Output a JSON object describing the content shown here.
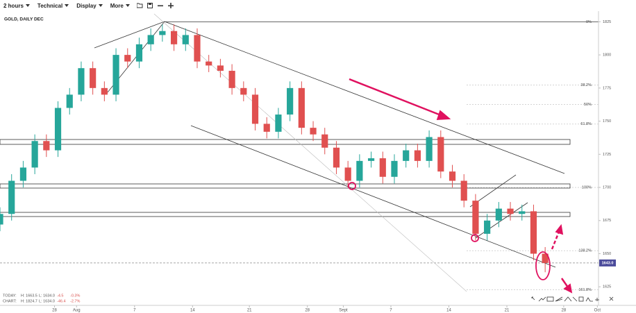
{
  "toolbar": {
    "interval": "2 hours",
    "technical": "Technical",
    "display": "Display",
    "more": "More"
  },
  "stats": {
    "today": {
      "label": "TODAY:",
      "high": "H: 1663.5",
      "low": "L: 1634.0",
      "change": "-4.5",
      "percent": "-0.3%"
    },
    "chart": {
      "label": "CHART:",
      "high": "H: 1824.7",
      "low": "L: 1634.0",
      "change": "-46.4",
      "percent": "-2.7%"
    }
  },
  "chart_data": {
    "type": "candlestick",
    "title": "GOLD, DAILY DEC",
    "x": [
      0,
      1,
      2,
      3,
      4,
      5,
      6,
      7,
      8,
      9,
      10,
      11,
      12,
      13,
      14,
      15,
      16,
      17,
      18,
      19,
      20,
      21,
      22,
      23,
      24,
      25,
      26,
      27,
      28,
      29,
      30,
      31,
      32,
      33,
      34,
      35,
      36,
      37,
      38,
      39,
      40,
      41,
      42,
      43,
      44,
      45,
      46,
      47
    ],
    "open": [
      1672,
      1680,
      1705,
      1715,
      1735,
      1728,
      1760,
      1770,
      1790,
      1775,
      1770,
      1800,
      1795,
      1808,
      1815,
      1818,
      1808,
      1815,
      1795,
      1792,
      1788,
      1775,
      1770,
      1748,
      1742,
      1755,
      1775,
      1745,
      1740,
      1730,
      1715,
      1705,
      1720,
      1722,
      1708,
      1720,
      1728,
      1720,
      1738,
      1712,
      1705,
      1690,
      1665,
      1675,
      1684,
      1680,
      1682,
      1650
    ],
    "high": [
      1685,
      1710,
      1720,
      1740,
      1740,
      1765,
      1775,
      1795,
      1795,
      1780,
      1805,
      1805,
      1813,
      1820,
      1823,
      1823,
      1820,
      1820,
      1800,
      1797,
      1793,
      1780,
      1775,
      1753,
      1760,
      1780,
      1780,
      1750,
      1745,
      1735,
      1720,
      1725,
      1727,
      1727,
      1725,
      1733,
      1733,
      1743,
      1743,
      1717,
      1710,
      1695,
      1680,
      1689,
      1689,
      1687,
      1687,
      1655
    ],
    "low": [
      1667,
      1675,
      1700,
      1710,
      1723,
      1723,
      1755,
      1765,
      1770,
      1765,
      1765,
      1790,
      1790,
      1803,
      1810,
      1803,
      1803,
      1790,
      1787,
      1783,
      1770,
      1765,
      1743,
      1737,
      1737,
      1750,
      1740,
      1735,
      1725,
      1710,
      1700,
      1700,
      1715,
      1703,
      1703,
      1715,
      1715,
      1715,
      1707,
      1700,
      1685,
      1660,
      1660,
      1670,
      1675,
      1675,
      1645,
      1636
    ],
    "close": [
      1680,
      1705,
      1715,
      1735,
      1728,
      1760,
      1770,
      1790,
      1775,
      1770,
      1800,
      1795,
      1808,
      1815,
      1818,
      1808,
      1815,
      1795,
      1792,
      1788,
      1775,
      1770,
      1748,
      1742,
      1755,
      1775,
      1745,
      1740,
      1730,
      1715,
      1705,
      1720,
      1722,
      1708,
      1720,
      1728,
      1720,
      1738,
      1712,
      1705,
      1690,
      1665,
      1675,
      1684,
      1680,
      1682,
      1650,
      1643
    ],
    "up_color": "#26a69a",
    "down_color": "#e05050",
    "xlim": [
      0,
      51.6
    ],
    "xticks": [
      {
        "value": 4.7,
        "label": "28"
      },
      {
        "value": 6.6,
        "label": "Aug"
      },
      {
        "value": 11.6,
        "label": "7"
      },
      {
        "value": 16.6,
        "label": "14"
      },
      {
        "value": 21.5,
        "label": "21"
      },
      {
        "value": 26.5,
        "label": "28"
      },
      {
        "value": 29.6,
        "label": "Sept"
      },
      {
        "value": 33.7,
        "label": "7"
      },
      {
        "value": 38.7,
        "label": "14"
      },
      {
        "value": 43.7,
        "label": "21"
      },
      {
        "value": 48.6,
        "label": "28"
      },
      {
        "value": 51.5,
        "label": "Oct"
      }
    ],
    "ylim": [
      1611,
      1832
    ],
    "yticks": [
      1625,
      1650,
      1675,
      1700,
      1725,
      1750,
      1775,
      1800,
      1825
    ],
    "fib_levels": [
      {
        "value": 1825,
        "label": "0%"
      },
      {
        "value": 1777.3,
        "label": "38.2%"
      },
      {
        "value": 1762.5,
        "label": "50%"
      },
      {
        "value": 1747.8,
        "label": "61.8%"
      },
      {
        "value": 1700,
        "label": "100%"
      },
      {
        "value": 1652.3,
        "label": "138.2%"
      },
      {
        "value": 1622.8,
        "label": "161.8%"
      }
    ],
    "last_price": {
      "value": 1643,
      "label": "1643.0"
    }
  }
}
